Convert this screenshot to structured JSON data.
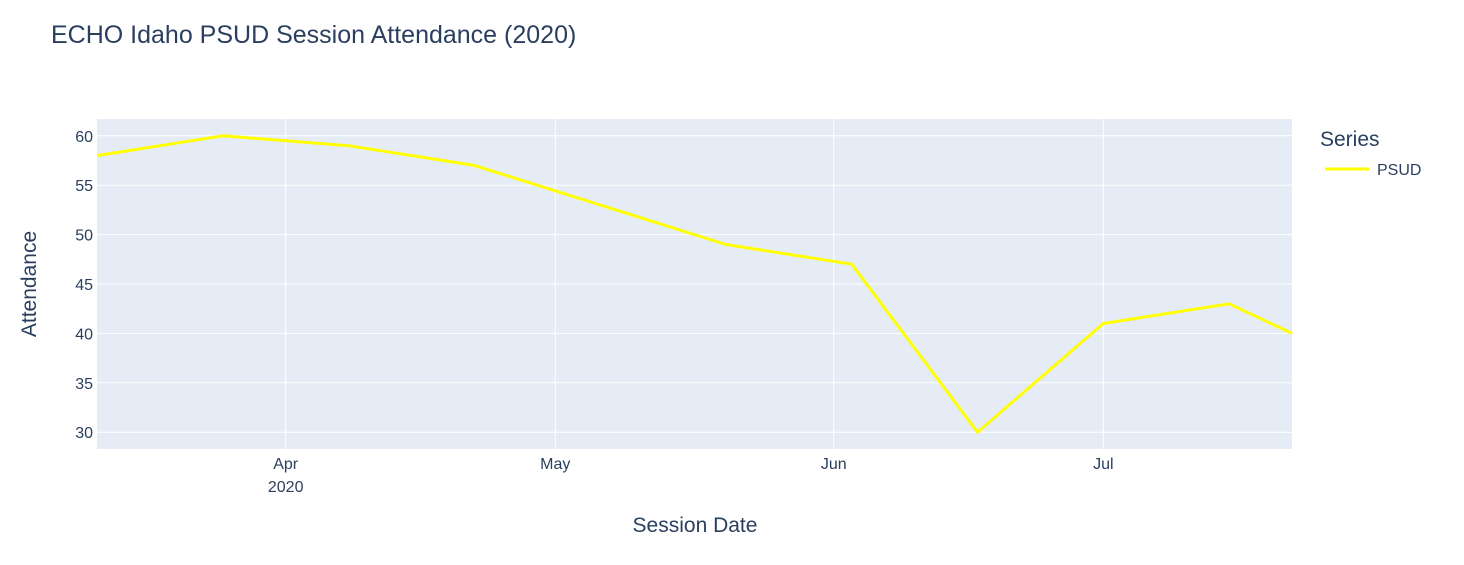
{
  "chart_data": {
    "type": "line",
    "title": "ECHO Idaho PSUD Session Attendance (2020)",
    "xlabel": "Session Date",
    "ylabel": "Attendance",
    "x_axis_type": "date",
    "xlim": [
      "2020-03-11",
      "2020-07-22"
    ],
    "ylim": [
      28.3,
      61.7
    ],
    "grid": true,
    "colors": {
      "plot_background": "#e5ecf6",
      "grid": "#ffffff",
      "text": "#2a3f5f",
      "series_line": "#ffff00"
    },
    "x_ticks": [
      {
        "date": "2020-04-01",
        "label": "Apr",
        "sublabel": "2020"
      },
      {
        "date": "2020-05-01",
        "label": "May",
        "sublabel": ""
      },
      {
        "date": "2020-06-01",
        "label": "Jun",
        "sublabel": ""
      },
      {
        "date": "2020-07-01",
        "label": "Jul",
        "sublabel": ""
      }
    ],
    "y_ticks": [
      30,
      35,
      40,
      45,
      50,
      55,
      60
    ],
    "legend": {
      "title": "Series",
      "placement": "right"
    },
    "series": [
      {
        "name": "PSUD",
        "x": [
          "2020-03-11",
          "2020-03-25",
          "2020-04-08",
          "2020-04-22",
          "2020-05-06",
          "2020-05-20",
          "2020-06-03",
          "2020-06-17",
          "2020-07-01",
          "2020-07-15",
          "2020-07-22"
        ],
        "y": [
          58,
          60,
          59,
          57,
          53,
          49,
          47,
          30,
          41,
          43,
          40
        ]
      }
    ]
  }
}
